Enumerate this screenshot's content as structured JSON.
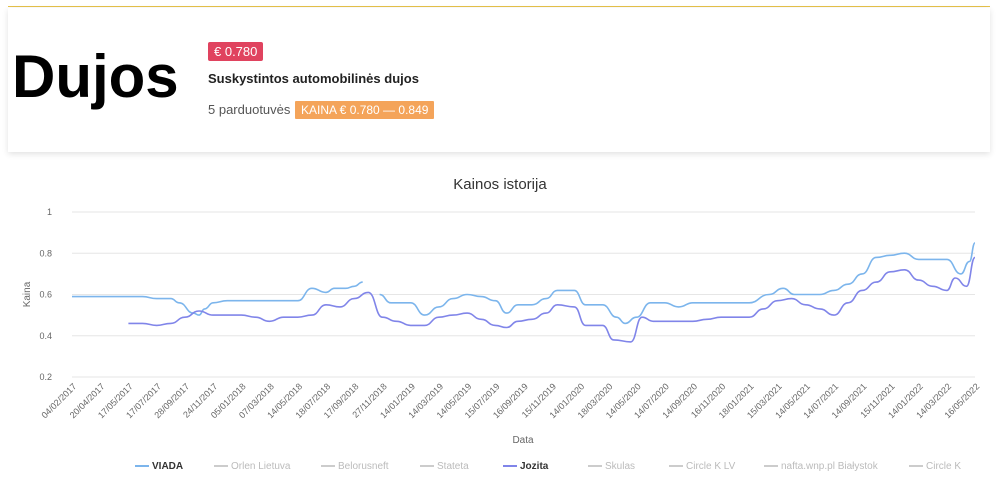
{
  "header": {
    "title": "Dujos",
    "price_badge": "€ 0.780",
    "subtitle": "Suskystintos automobilinės dujos",
    "stores": "5 parduotuvės",
    "price_range": "KAINA € 0.780 — 0.849"
  },
  "colors": {
    "price_badge": "#e0435f",
    "range_badge": "#f4a45a",
    "viada": "#7cb5ec",
    "jozita": "#8085e9"
  },
  "chart_data": {
    "type": "line",
    "title": "Kainos istorija",
    "xlabel": "Data",
    "ylabel": "Kaina",
    "ylim": [
      0.2,
      1
    ],
    "yticks": [
      "0.2",
      "0.4",
      "0.6",
      "0.8",
      "1"
    ],
    "grid": true,
    "legend_position": "bottom",
    "x_labels": [
      "04/02/2017",
      "20/04/2017",
      "17/05/2017",
      "17/07/2017",
      "28/09/2017",
      "24/11/2017",
      "05/01/2018",
      "07/03/2018",
      "14/05/2018",
      "18/07/2018",
      "17/09/2018",
      "27/11/2018",
      "14/01/2019",
      "14/03/2019",
      "14/05/2019",
      "15/07/2019",
      "16/09/2019",
      "15/11/2019",
      "14/01/2020",
      "18/03/2020",
      "14/05/2020",
      "14/07/2020",
      "14/09/2020",
      "16/11/2020",
      "18/01/2021",
      "15/03/2021",
      "14/05/2021",
      "14/07/2021",
      "14/09/2021",
      "15/11/2021",
      "14/01/2022",
      "14/03/2022",
      "16/05/2022"
    ],
    "legend": [
      {
        "name": "VIADA",
        "active": true
      },
      {
        "name": "Orlen Lietuva",
        "active": false
      },
      {
        "name": "Belorusneft",
        "active": false
      },
      {
        "name": "Stateta",
        "active": false
      },
      {
        "name": "Jozita",
        "active": true
      },
      {
        "name": "Skulas",
        "active": false
      },
      {
        "name": "Circle K LV",
        "active": false
      },
      {
        "name": "nafta.wnp.pl Białystok",
        "active": false
      },
      {
        "name": "Circle K",
        "active": false
      }
    ],
    "series": [
      {
        "name": "VIADA",
        "segments": [
          [
            [
              0,
              0.59
            ],
            [
              1,
              0.59
            ],
            [
              2,
              0.59
            ],
            [
              2.5,
              0.59
            ],
            [
              3,
              0.58
            ],
            [
              3.5,
              0.58
            ],
            [
              3.8,
              0.56
            ],
            [
              4.3,
              0.51
            ],
            [
              4.5,
              0.5
            ],
            [
              4.7,
              0.53
            ],
            [
              5,
              0.56
            ],
            [
              5.5,
              0.57
            ],
            [
              6,
              0.57
            ],
            [
              7,
              0.57
            ],
            [
              8,
              0.57
            ],
            [
              8.5,
              0.63
            ],
            [
              9,
              0.61
            ],
            [
              9.3,
              0.63
            ],
            [
              9.7,
              0.63
            ],
            [
              10,
              0.64
            ],
            [
              10.3,
              0.66
            ]
          ],
          [
            [
              10.9,
              0.6
            ],
            [
              11.3,
              0.56
            ],
            [
              12,
              0.56
            ],
            [
              12.5,
              0.5
            ],
            [
              13,
              0.54
            ],
            [
              13.5,
              0.58
            ],
            [
              14,
              0.6
            ],
            [
              14.5,
              0.59
            ],
            [
              15,
              0.57
            ],
            [
              15.4,
              0.51
            ],
            [
              15.8,
              0.55
            ],
            [
              16.3,
              0.55
            ],
            [
              16.8,
              0.58
            ],
            [
              17.2,
              0.62
            ],
            [
              17.8,
              0.62
            ],
            [
              18.2,
              0.55
            ],
            [
              18.8,
              0.55
            ],
            [
              19.3,
              0.49
            ],
            [
              19.6,
              0.46
            ],
            [
              20,
              0.49
            ],
            [
              20.5,
              0.56
            ],
            [
              21,
              0.56
            ],
            [
              21.5,
              0.54
            ],
            [
              22,
              0.56
            ],
            [
              23,
              0.56
            ],
            [
              24,
              0.56
            ],
            [
              24.7,
              0.6
            ],
            [
              25.2,
              0.63
            ],
            [
              25.6,
              0.6
            ],
            [
              26.5,
              0.6
            ],
            [
              27,
              0.62
            ],
            [
              27.5,
              0.65
            ],
            [
              28,
              0.7
            ],
            [
              28.5,
              0.78
            ],
            [
              29,
              0.79
            ],
            [
              29.5,
              0.8
            ],
            [
              30,
              0.77
            ],
            [
              31,
              0.77
            ],
            [
              31.5,
              0.7
            ],
            [
              31.8,
              0.76
            ],
            [
              32,
              0.85
            ]
          ]
        ]
      },
      {
        "name": "Jozita",
        "segments": [
          [
            [
              2,
              0.46
            ],
            [
              2.5,
              0.46
            ],
            [
              3,
              0.45
            ],
            [
              3.5,
              0.46
            ],
            [
              4,
              0.49
            ],
            [
              4.5,
              0.52
            ],
            [
              5,
              0.5
            ],
            [
              6,
              0.5
            ],
            [
              6.5,
              0.49
            ],
            [
              7,
              0.47
            ],
            [
              7.5,
              0.49
            ],
            [
              8,
              0.49
            ],
            [
              8.5,
              0.5
            ],
            [
              9,
              0.55
            ],
            [
              9.5,
              0.54
            ],
            [
              10,
              0.58
            ],
            [
              10.5,
              0.61
            ],
            [
              11,
              0.49
            ],
            [
              11.5,
              0.47
            ],
            [
              12,
              0.45
            ],
            [
              12.5,
              0.45
            ],
            [
              13,
              0.49
            ],
            [
              13.5,
              0.5
            ],
            [
              14,
              0.51
            ],
            [
              14.5,
              0.48
            ],
            [
              15,
              0.45
            ],
            [
              15.4,
              0.44
            ],
            [
              15.8,
              0.47
            ],
            [
              16.3,
              0.48
            ],
            [
              16.8,
              0.51
            ],
            [
              17.2,
              0.55
            ],
            [
              17.8,
              0.54
            ],
            [
              18.2,
              0.45
            ],
            [
              18.8,
              0.45
            ],
            [
              19.2,
              0.38
            ],
            [
              19.8,
              0.37
            ],
            [
              20.2,
              0.49
            ],
            [
              20.6,
              0.47
            ],
            [
              21,
              0.47
            ],
            [
              22,
              0.47
            ],
            [
              22.5,
              0.48
            ],
            [
              23,
              0.49
            ],
            [
              24,
              0.49
            ],
            [
              24.5,
              0.53
            ],
            [
              25,
              0.57
            ],
            [
              25.5,
              0.58
            ],
            [
              26,
              0.55
            ],
            [
              26.5,
              0.53
            ],
            [
              27,
              0.5
            ],
            [
              27.5,
              0.56
            ],
            [
              28,
              0.62
            ],
            [
              28.5,
              0.66
            ],
            [
              29,
              0.71
            ],
            [
              29.5,
              0.72
            ],
            [
              30,
              0.67
            ],
            [
              30.5,
              0.64
            ],
            [
              31,
              0.62
            ],
            [
              31.3,
              0.68
            ],
            [
              31.7,
              0.64
            ],
            [
              32,
              0.78
            ]
          ]
        ]
      }
    ]
  }
}
